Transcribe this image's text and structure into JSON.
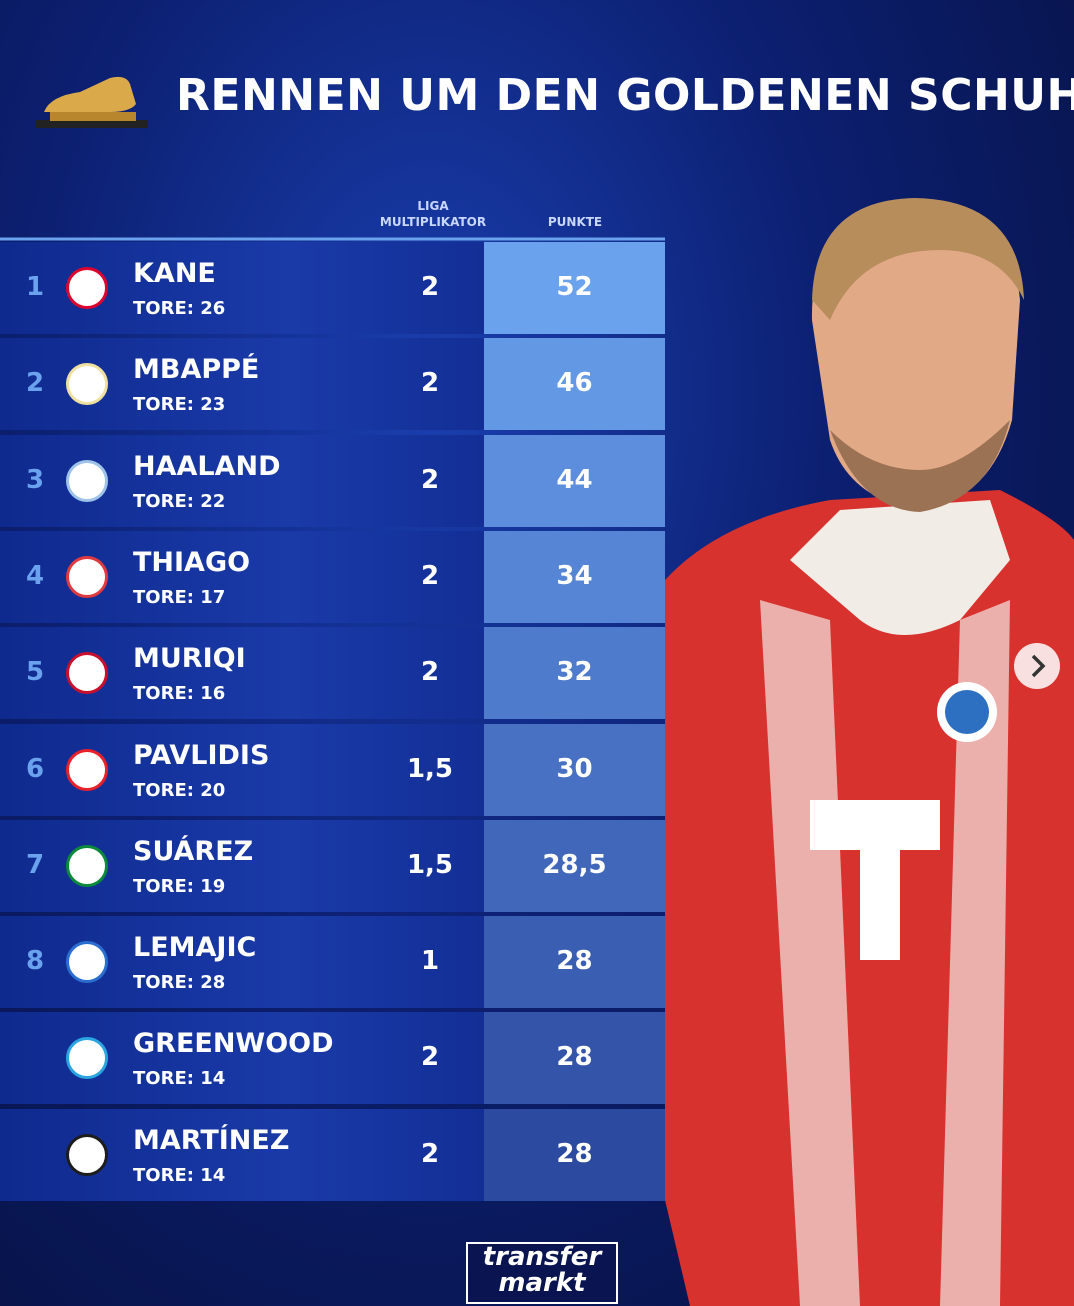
{
  "header": {
    "title": "RENNEN UM DEN GOLDENEN SCHUH"
  },
  "table": {
    "columns": {
      "multiplier": "LIGA MULTIPLIKATOR",
      "points": "PUNKTE"
    },
    "rows": [
      {
        "rank": "1",
        "name": "KANE",
        "goals": "TORE: 26",
        "multiplier": "2",
        "points": "52"
      },
      {
        "rank": "2",
        "name": "MBAPPÉ",
        "goals": "TORE: 23",
        "multiplier": "2",
        "points": "46"
      },
      {
        "rank": "3",
        "name": "HAALAND",
        "goals": "TORE: 22",
        "multiplier": "2",
        "points": "44"
      },
      {
        "rank": "4",
        "name": "THIAGO",
        "goals": "TORE: 17",
        "multiplier": "2",
        "points": "34"
      },
      {
        "rank": "5",
        "name": "MURIQI",
        "goals": "TORE: 16",
        "multiplier": "2",
        "points": "32"
      },
      {
        "rank": "6",
        "name": "PAVLIDIS",
        "goals": "TORE: 20",
        "multiplier": "1,5",
        "points": "30"
      },
      {
        "rank": "7",
        "name": "SUÁREZ",
        "goals": "TORE: 19",
        "multiplier": "1,5",
        "points": "28,5"
      },
      {
        "rank": "8",
        "name": "LEMAJIC",
        "goals": "TORE: 28",
        "multiplier": "1",
        "points": "28"
      },
      {
        "name": "GREENWOOD",
        "goals": "TORE: 14",
        "multiplier": "2",
        "points": "28"
      },
      {
        "name": "MARTÍNEZ",
        "goals": "TORE: 14",
        "multiplier": "2",
        "points": "28"
      }
    ]
  },
  "footer": {
    "logo": [
      "transfer",
      "markt"
    ]
  }
}
